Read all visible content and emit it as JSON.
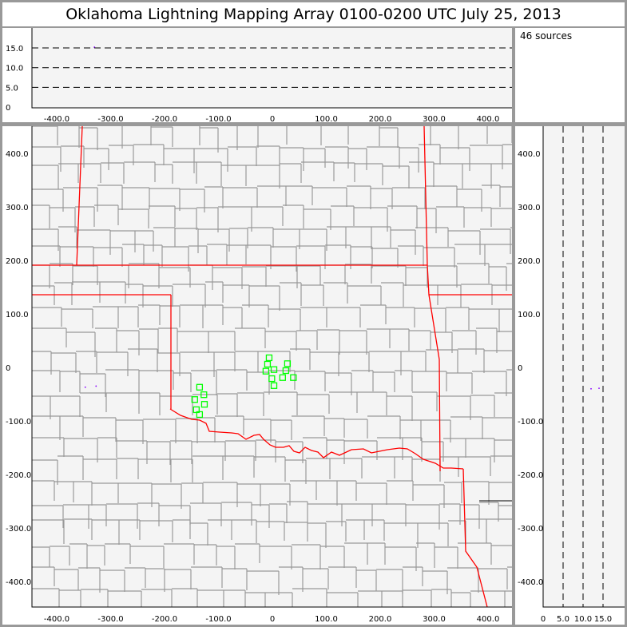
{
  "title": "Oklahoma Lightning Mapping Array   0100-0200 UTC  July 25, 2013",
  "source_count": "46 sources",
  "colors": {
    "background": "#999999",
    "plot_bg": "#f4f4f4",
    "state_border": "#ff0000",
    "county_border": "#999999",
    "station": "#00ff00",
    "source": "#8800ff"
  },
  "chart_data": [
    {
      "type": "scatter",
      "panel": "altitude-vs-east-west",
      "xlim": [
        -450,
        450
      ],
      "ylim": [
        0,
        20
      ],
      "xticks": [
        "-400.0",
        "-300.0",
        "-200.0",
        "-100.0",
        "0",
        "100.0",
        "200.0",
        "300.0",
        "400.0"
      ],
      "yticks": [
        "0",
        "5.0",
        "10.0",
        "15.0"
      ],
      "gridlines_y": [
        5,
        10,
        15
      ],
      "sources": [
        {
          "x": -330,
          "z": 15.2
        }
      ]
    },
    {
      "type": "scatter",
      "panel": "plan-view-map",
      "xlim": [
        -450,
        450
      ],
      "ylim": [
        -450,
        450
      ],
      "xticks": [
        "-400.0",
        "-300.0",
        "-200.0",
        "-100.0",
        "0",
        "100.0",
        "200.0",
        "300.0",
        "400.0"
      ],
      "yticks": [
        "400.0",
        "300.0",
        "200.0",
        "100.0",
        "0",
        "-100.0",
        "-200.0",
        "-300.0",
        "-400.0"
      ],
      "sources": [
        {
          "x": -347,
          "y": -37
        },
        {
          "x": -327,
          "y": -35
        }
      ],
      "stations": [
        {
          "x": -6,
          "y": 18
        },
        {
          "x": -9,
          "y": 6
        },
        {
          "x": 28,
          "y": 7
        },
        {
          "x": -12,
          "y": -7
        },
        {
          "x": 3,
          "y": -4
        },
        {
          "x": 25,
          "y": -6
        },
        {
          "x": -1,
          "y": -21
        },
        {
          "x": 19,
          "y": -19
        },
        {
          "x": 39,
          "y": -19
        },
        {
          "x": 3,
          "y": -34
        },
        {
          "x": -135,
          "y": -37
        },
        {
          "x": -127,
          "y": -51
        },
        {
          "x": -144,
          "y": -60
        },
        {
          "x": -126,
          "y": -69
        },
        {
          "x": -141,
          "y": -79
        },
        {
          "x": -135,
          "y": -88
        }
      ]
    },
    {
      "type": "scatter",
      "panel": "north-south-vs-altitude",
      "xlim": [
        0,
        20
      ],
      "ylim": [
        -450,
        450
      ],
      "xticks": [
        "0",
        "5.0",
        "10.0",
        "15.0"
      ],
      "gridlines_x": [
        5,
        10,
        15
      ],
      "yticks": [
        "400.0",
        "300.0",
        "200.0",
        "100.0",
        "0",
        "-100.0",
        "-200.0",
        "-300.0",
        "-400.0"
      ],
      "sources": [
        {
          "z": 12,
          "y": -40
        },
        {
          "z": 14,
          "y": -39
        }
      ]
    }
  ]
}
